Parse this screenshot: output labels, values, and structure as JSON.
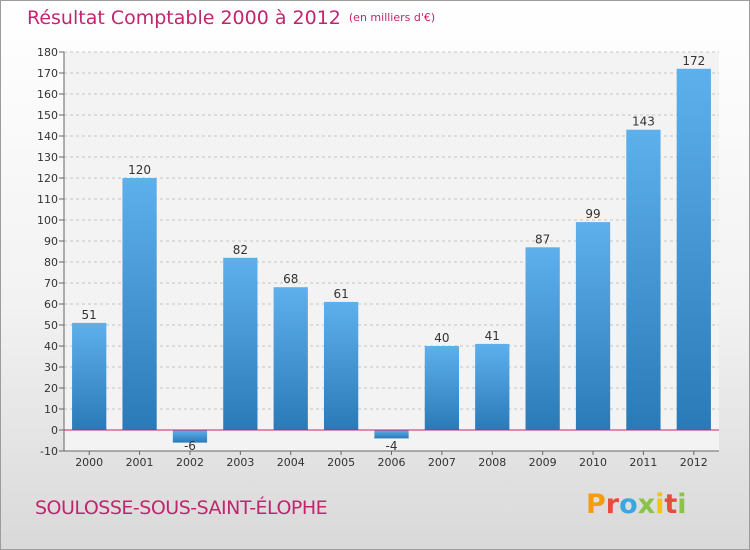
{
  "header": {
    "title": "Résultat Comptable 2000 à 2012",
    "subtitle": "(en milliers d'€)"
  },
  "footer": {
    "commune": "SOULOSSE-SOUS-SAINT-ÉLOPHE"
  },
  "logo": {
    "letters": [
      "P",
      "r",
      "o",
      "x",
      "i",
      "t",
      "i"
    ],
    "colors": [
      "#f39c12",
      "#e74c3c",
      "#3ba7e0",
      "#8bc34a",
      "#f1c40f",
      "#e74c3c",
      "#8bc34a"
    ]
  },
  "colors": {
    "accent": "#c0266f",
    "bar_light": "#5eb0ec",
    "bar_dark": "#2a7ab8",
    "zero_line": "#c0266f"
  },
  "chart_data": {
    "type": "bar",
    "title": "Résultat Comptable 2000 à 2012",
    "subtitle": "(en milliers d'€)",
    "categories": [
      "2000",
      "2001",
      "2002",
      "2003",
      "2004",
      "2005",
      "2006",
      "2007",
      "2008",
      "2009",
      "2010",
      "2011",
      "2012"
    ],
    "values": [
      51,
      120,
      -6,
      82,
      68,
      61,
      -4,
      40,
      41,
      87,
      99,
      143,
      172
    ],
    "data_labels": [
      "51",
      "120",
      "-6",
      "82",
      "68",
      "61",
      "-4",
      "40",
      "41",
      "87",
      "99",
      "143",
      "172"
    ],
    "ylim": [
      -10,
      180
    ],
    "yticks": [
      -10,
      0,
      10,
      20,
      30,
      40,
      50,
      60,
      70,
      80,
      90,
      100,
      110,
      120,
      130,
      140,
      150,
      160,
      170,
      180
    ],
    "xlabel": "",
    "ylabel": "",
    "grid": true
  }
}
